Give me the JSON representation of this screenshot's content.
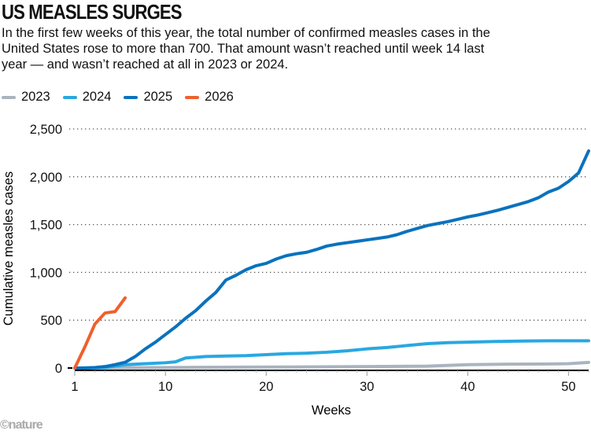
{
  "title": "US MEASLES SURGES",
  "subtitle": "In the first few weeks of this year, the total number of confirmed measles cases in the United States rose to more than 700. That amount wasn’t reached until week 14 last year — and wasn’t reached at all in 2023 or 2024.",
  "credit": "©nature",
  "chart_data": {
    "type": "line",
    "xlabel": "Weeks",
    "ylabel": "Cumulative measles cases",
    "xlim": [
      1,
      52
    ],
    "ylim": [
      0,
      2500
    ],
    "xticks": [
      "1",
      "10",
      "20",
      "30",
      "40",
      "50"
    ],
    "yticks": [
      "0",
      "500",
      "1,000",
      "1,500",
      "2,000",
      "2,500"
    ],
    "grid": "horizontal dotted",
    "legend": "top-left",
    "series": [
      {
        "name": "2023",
        "color": "#aab4bf",
        "weeks": [
          1,
          10,
          20,
          30,
          36,
          40,
          44,
          48,
          50,
          52
        ],
        "values": [
          0,
          5,
          10,
          15,
          20,
          35,
          40,
          42,
          45,
          59
        ]
      },
      {
        "name": "2024",
        "color": "#29a8e0",
        "weeks": [
          1,
          4,
          5,
          6,
          8,
          10,
          11,
          12,
          14,
          16,
          18,
          20,
          22,
          24,
          26,
          28,
          30,
          32,
          34,
          36,
          38,
          40,
          42,
          44,
          46,
          48,
          52
        ],
        "values": [
          0,
          5,
          20,
          35,
          45,
          55,
          65,
          105,
          120,
          125,
          130,
          140,
          150,
          155,
          165,
          180,
          200,
          215,
          235,
          255,
          265,
          270,
          275,
          280,
          283,
          285,
          285
        ]
      },
      {
        "name": "2025",
        "color": "#0a72bd",
        "weeks": [
          1,
          2,
          3,
          4,
          5,
          6,
          7,
          8,
          9,
          10,
          11,
          12,
          13,
          14,
          15,
          16,
          17,
          18,
          19,
          20,
          21,
          22,
          23,
          24,
          25,
          26,
          27,
          28,
          29,
          30,
          31,
          32,
          33,
          34,
          35,
          36,
          37,
          38,
          39,
          40,
          41,
          42,
          43,
          44,
          45,
          46,
          47,
          48,
          49,
          50,
          51,
          52
        ],
        "values": [
          0,
          0,
          5,
          15,
          35,
          60,
          120,
          200,
          270,
          350,
          430,
          520,
          600,
          700,
          790,
          920,
          970,
          1028,
          1070,
          1094,
          1140,
          1175,
          1195,
          1210,
          1240,
          1275,
          1295,
          1310,
          1325,
          1340,
          1355,
          1370,
          1395,
          1430,
          1460,
          1490,
          1510,
          1530,
          1555,
          1580,
          1600,
          1625,
          1650,
          1680,
          1710,
          1740,
          1780,
          1840,
          1880,
          1950,
          2040,
          2270
        ]
      },
      {
        "name": "2026",
        "color": "#f0602c",
        "weeks": [
          1,
          2,
          3,
          4,
          5,
          6
        ],
        "values": [
          0,
          220,
          460,
          575,
          590,
          733
        ]
      }
    ]
  }
}
